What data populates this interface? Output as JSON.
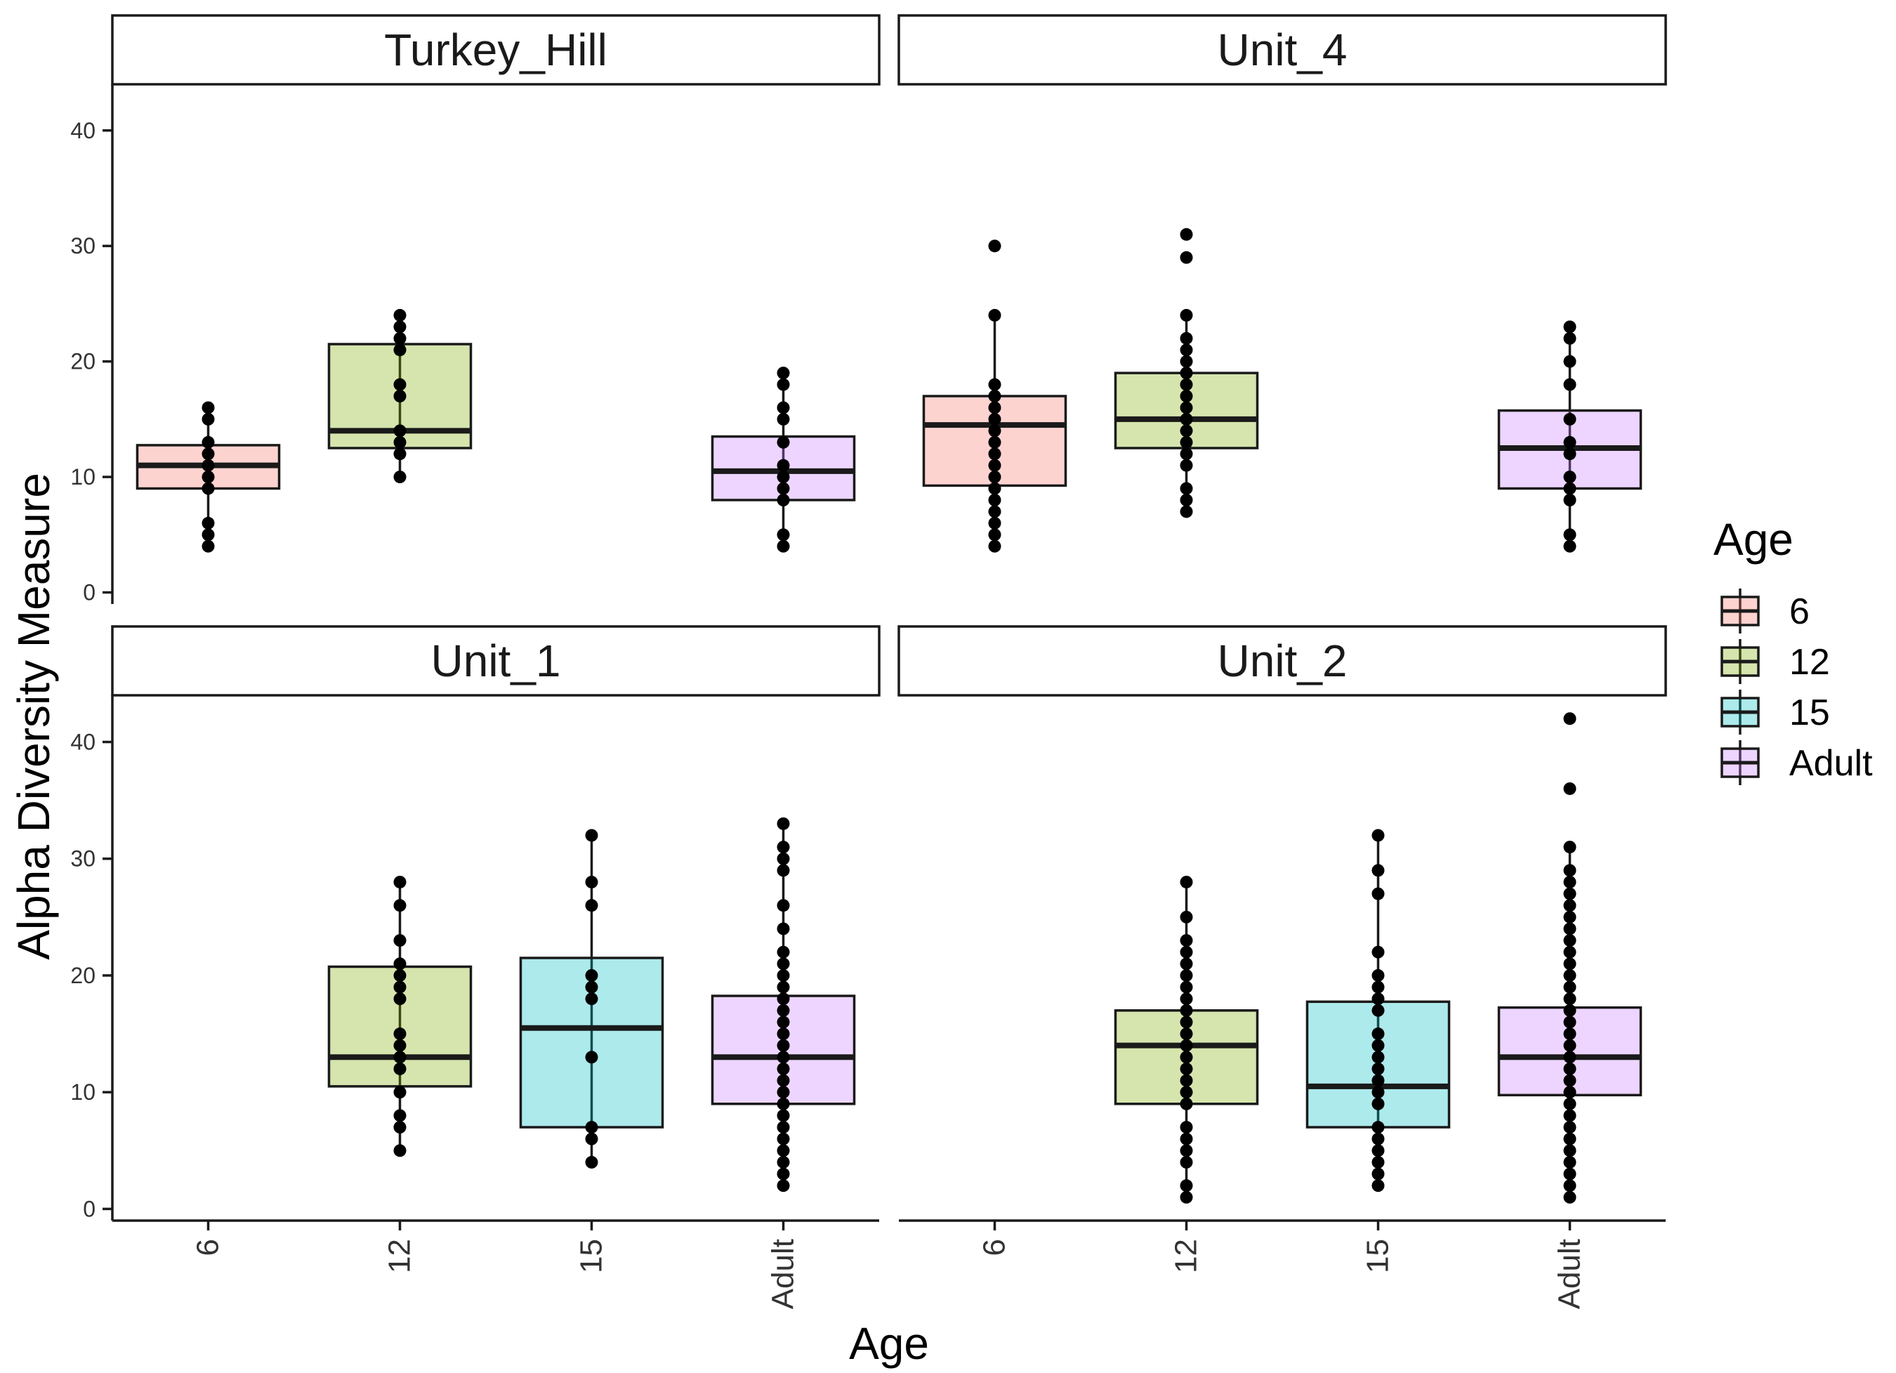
{
  "chart_data": {
    "type": "boxplot",
    "ylabel": "Alpha Diversity Measure",
    "xlabel": "Age",
    "categories": [
      "6",
      "12",
      "15",
      "Adult"
    ],
    "ylim": [
      -1,
      44
    ],
    "yticks": [
      0,
      10,
      20,
      30,
      40
    ],
    "legend": {
      "title": "Age",
      "position": "right",
      "entries": [
        {
          "label": "6",
          "color": "#F8766D"
        },
        {
          "label": "12",
          "color": "#7CAE00"
        },
        {
          "label": "15",
          "color": "#00BFC4"
        },
        {
          "label": "Adult",
          "color": "#C77CFF"
        }
      ]
    },
    "panels": [
      {
        "title": "Turkey_Hill",
        "boxes": [
          {
            "category": "6",
            "min": 4,
            "q1": 9,
            "median": 11,
            "q3": 12.75,
            "max": 16,
            "points": [
              4,
              5,
              6,
              9,
              10,
              11,
              12,
              13,
              15,
              16
            ]
          },
          {
            "category": "12",
            "min": 10,
            "q1": 12.5,
            "median": 14,
            "q3": 21.5,
            "max": 24,
            "points": [
              10,
              12,
              13,
              14,
              17,
              18,
              21,
              22,
              23,
              24
            ]
          },
          {
            "category": "Adult",
            "min": 4,
            "q1": 8,
            "median": 10.5,
            "q3": 13.5,
            "max": 19,
            "points": [
              4,
              5,
              8,
              9,
              10,
              11,
              13,
              15,
              16,
              18,
              19
            ]
          }
        ]
      },
      {
        "title": "Unit_4",
        "boxes": [
          {
            "category": "6",
            "min": 4,
            "q1": 9.25,
            "median": 14.5,
            "q3": 17,
            "max": 24,
            "points": [
              4,
              5,
              6,
              7,
              8,
              9,
              10,
              11,
              12,
              13,
              14,
              15,
              16,
              17,
              18,
              24,
              30
            ]
          },
          {
            "category": "12",
            "min": 7,
            "q1": 12.5,
            "median": 15,
            "q3": 19,
            "max": 24,
            "points": [
              7,
              8,
              9,
              11,
              12,
              13,
              14,
              15,
              16,
              17,
              18,
              19,
              20,
              21,
              22,
              24,
              29,
              31
            ]
          },
          {
            "category": "Adult",
            "min": 4,
            "q1": 9,
            "median": 12.5,
            "q3": 15.75,
            "max": 23,
            "points": [
              4,
              5,
              8,
              9,
              10,
              12,
              13,
              15,
              18,
              20,
              22,
              23
            ]
          }
        ]
      },
      {
        "title": "Unit_1",
        "boxes": [
          {
            "category": "12",
            "min": 5,
            "q1": 10.5,
            "median": 13,
            "q3": 20.75,
            "max": 28,
            "points": [
              5,
              7,
              8,
              10,
              12,
              13,
              14,
              15,
              18,
              19,
              20,
              21,
              23,
              26,
              28
            ]
          },
          {
            "category": "15",
            "min": 4,
            "q1": 7,
            "median": 15.5,
            "q3": 21.5,
            "max": 32,
            "points": [
              4,
              6,
              7,
              13,
              18,
              19,
              20,
              26,
              28,
              32
            ]
          },
          {
            "category": "Adult",
            "min": 2,
            "q1": 9,
            "median": 13,
            "q3": 18.25,
            "max": 33,
            "points": [
              2,
              3,
              4,
              5,
              6,
              7,
              8,
              9,
              10,
              11,
              12,
              13,
              14,
              15,
              16,
              17,
              18,
              19,
              20,
              21,
              22,
              24,
              26,
              29,
              30,
              31,
              33
            ]
          }
        ]
      },
      {
        "title": "Unit_2",
        "boxes": [
          {
            "category": "12",
            "min": 1,
            "q1": 9,
            "median": 14,
            "q3": 17,
            "max": 28,
            "points": [
              1,
              2,
              4,
              5,
              6,
              7,
              9,
              10,
              11,
              12,
              13,
              14,
              15,
              16,
              17,
              18,
              19,
              20,
              21,
              22,
              23,
              25,
              28
            ]
          },
          {
            "category": "15",
            "min": 2,
            "q1": 7,
            "median": 10.5,
            "q3": 17.75,
            "max": 32,
            "points": [
              2,
              3,
              4,
              5,
              6,
              7,
              9,
              10,
              11,
              12,
              13,
              14,
              15,
              17,
              18,
              19,
              20,
              22,
              27,
              29,
              32
            ]
          },
          {
            "category": "Adult",
            "min": 1,
            "q1": 9.75,
            "median": 13,
            "q3": 17.25,
            "max": 31,
            "points": [
              1,
              2,
              3,
              4,
              5,
              6,
              7,
              8,
              9,
              10,
              11,
              12,
              13,
              14,
              15,
              16,
              17,
              18,
              19,
              20,
              21,
              22,
              23,
              24,
              25,
              26,
              27,
              28,
              29,
              31,
              36,
              42
            ]
          }
        ]
      }
    ]
  }
}
